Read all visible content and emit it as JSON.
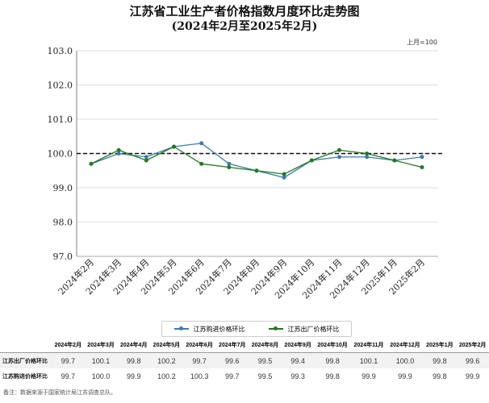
{
  "chart_data": {
    "type": "line",
    "title": "江苏省工业生产者价格指数月度环比走势图",
    "subtitle": "(2024年2月至2025年2月)",
    "unit_note": "上月=100",
    "categories": [
      "2024年2月",
      "2024年3月",
      "2024年4月",
      "2024年5月",
      "2024年6月",
      "2024年7月",
      "2024年8月",
      "2024年9月",
      "2024年10月",
      "2024年11月",
      "2024年12月",
      "2025年1月",
      "2025年2月"
    ],
    "ylim": [
      97.0,
      103.0
    ],
    "yticks": [
      "97.0",
      "98.0",
      "99.0",
      "100.0",
      "101.0",
      "102.0",
      "103.0"
    ],
    "reference_line": 100.0,
    "grid": true,
    "legend_placement": "bottom",
    "series": [
      {
        "name": "江苏购进价格环比",
        "color": "#3a7bb0",
        "values": [
          99.7,
          100.0,
          99.9,
          100.2,
          100.3,
          99.7,
          99.5,
          99.3,
          99.8,
          99.9,
          99.9,
          99.8,
          99.9
        ]
      },
      {
        "name": "江苏出厂价格环比",
        "color": "#1e7a1e",
        "values": [
          99.7,
          100.1,
          99.8,
          100.2,
          99.7,
          99.6,
          99.5,
          99.4,
          99.8,
          100.1,
          100.0,
          99.8,
          99.6
        ]
      }
    ]
  },
  "table": {
    "headers": [
      "2024年2月",
      "2024年3月",
      "2024年4月",
      "2024年5月",
      "2024年6月",
      "2024年7月",
      "2024年8月",
      "2024年9月",
      "2024年10月",
      "2024年11月",
      "2024年12月",
      "2025年1月",
      "2025年2月"
    ],
    "rows": [
      {
        "label": "江苏出厂价格环比",
        "values": [
          "99.7",
          "100.1",
          "99.8",
          "100.2",
          "99.7",
          "99.6",
          "99.5",
          "99.4",
          "99.8",
          "100.1",
          "100.0",
          "99.8",
          "99.6"
        ]
      },
      {
        "label": "江苏购进价格环比",
        "values": [
          "99.7",
          "100.0",
          "99.9",
          "100.2",
          "100.3",
          "99.7",
          "99.5",
          "99.3",
          "99.8",
          "99.9",
          "99.9",
          "99.8",
          "99.9"
        ]
      }
    ]
  },
  "note": "备注：数据来源于国家统计局江苏调查总队。"
}
